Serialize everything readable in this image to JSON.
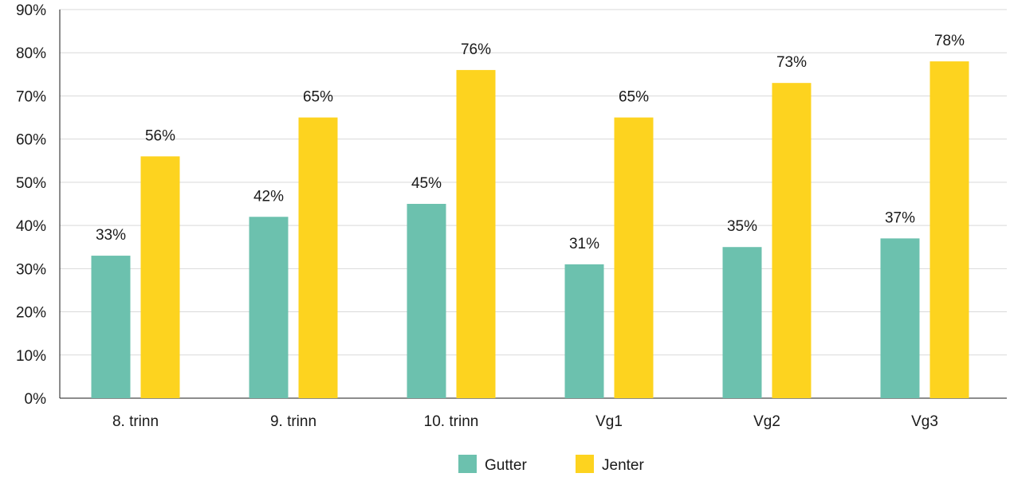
{
  "chart_data": {
    "type": "bar",
    "categories": [
      "8. trinn",
      "9. trinn",
      "10. trinn",
      "Vg1",
      "Vg2",
      "Vg3"
    ],
    "series": [
      {
        "name": "Gutter",
        "values": [
          33,
          42,
          45,
          31,
          35,
          37
        ],
        "labels": [
          "33%",
          "42%",
          "45%",
          "31%",
          "35%",
          "37%"
        ],
        "color": "#6cc1ae"
      },
      {
        "name": "Jenter",
        "values": [
          56,
          65,
          76,
          65,
          73,
          78
        ],
        "labels": [
          "56%",
          "65%",
          "76%",
          "65%",
          "73%",
          "78%"
        ],
        "color": "#fdd31f"
      }
    ],
    "title": "",
    "xlabel": "",
    "ylabel": "",
    "ylim": [
      0,
      90
    ],
    "yticks": [
      0,
      10,
      20,
      30,
      40,
      50,
      60,
      70,
      80,
      90
    ],
    "ytick_labels": [
      "0%",
      "10%",
      "20%",
      "30%",
      "40%",
      "50%",
      "60%",
      "70%",
      "80%",
      "90%"
    ],
    "grid": true,
    "gridline_color": "#d9d9d9",
    "legend_position": "bottom-center"
  }
}
